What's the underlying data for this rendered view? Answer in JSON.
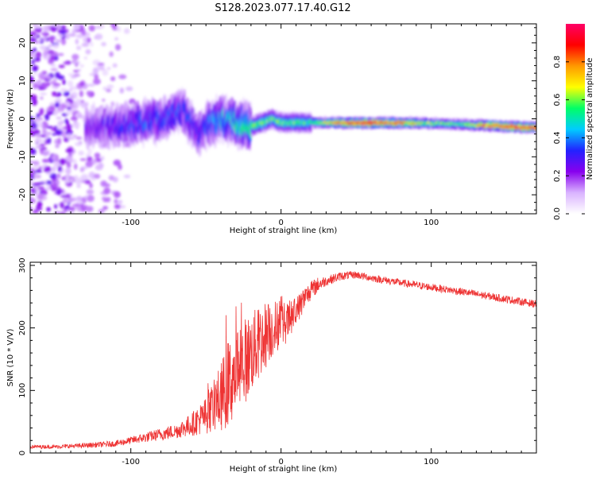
{
  "figure_title": "S128.2023.077.17.40.G12",
  "chart_data": [
    {
      "type": "heatmap",
      "title": "",
      "xlabel": "Height of straight line (km)",
      "ylabel": "Frequency (Hz)",
      "xlim": [
        -167,
        170
      ],
      "ylim": [
        -25,
        25
      ],
      "xticks": [
        -100,
        0,
        100
      ],
      "yticks": [
        -20,
        -10,
        0,
        10,
        20
      ],
      "grid": false,
      "colorbar": {
        "label": "Normalized spectral amplitude",
        "range": [
          0.0,
          1.0
        ],
        "ticks": [
          0.0,
          0.2,
          0.4,
          0.6,
          0.8
        ],
        "colormap": [
          "#ffffff",
          "#d9b3ff",
          "#8800ee",
          "#2222ff",
          "#00ccff",
          "#00ff66",
          "#ffff00",
          "#ff9900",
          "#ff0000",
          "#ff0066"
        ]
      },
      "ridge": {
        "description_x": [
          -125,
          -110,
          -95,
          -80,
          -65,
          -55,
          -48,
          -40,
          -30,
          -20,
          -12,
          -6,
          0,
          10,
          20,
          40,
          60,
          80,
          100,
          120,
          140,
          160,
          170
        ],
        "frequency_hz": [
          -2,
          -2,
          -1,
          0,
          2,
          -4,
          -1,
          0,
          -1,
          -2,
          -1,
          0,
          -1,
          -1,
          -1,
          -1.1,
          -1.1,
          -1.1,
          -1.2,
          -1.5,
          -1.8,
          -2.2,
          -2.3
        ],
        "peak_amplitude": [
          0.25,
          0.3,
          0.35,
          0.35,
          0.35,
          0.3,
          0.4,
          0.45,
          0.5,
          0.55,
          0.6,
          0.55,
          0.55,
          0.55,
          0.55,
          0.85,
          0.9,
          0.8,
          0.6,
          0.55,
          0.85,
          0.9,
          0.9
        ]
      }
    },
    {
      "type": "line",
      "title": "",
      "xlabel": "Height of straight line (km)",
      "ylabel": "SNR (10 * V/V)",
      "xlim": [
        -167,
        170
      ],
      "ylim": [
        0,
        305
      ],
      "xticks": [
        -100,
        0,
        100
      ],
      "yticks": [
        0,
        100,
        200,
        300
      ],
      "grid": false,
      "series": [
        {
          "color": "#ee3333",
          "x": [
            -167,
            -150,
            -130,
            -110,
            -100,
            -90,
            -80,
            -70,
            -60,
            -50,
            -45,
            -40,
            -35,
            -30,
            -25,
            -20,
            -15,
            -10,
            -5,
            0,
            5,
            10,
            15,
            20,
            25,
            30,
            40,
            50,
            60,
            80,
            100,
            120,
            140,
            160,
            170
          ],
          "y": [
            10,
            10,
            12,
            15,
            20,
            25,
            30,
            35,
            45,
            60,
            75,
            90,
            110,
            130,
            145,
            160,
            175,
            190,
            200,
            205,
            210,
            225,
            245,
            260,
            270,
            275,
            283,
            285,
            280,
            272,
            265,
            258,
            250,
            242,
            238
          ],
          "noise": [
            3,
            3,
            4,
            5,
            6,
            8,
            10,
            12,
            18,
            30,
            40,
            55,
            70,
            75,
            70,
            65,
            60,
            55,
            45,
            40,
            30,
            25,
            20,
            15,
            12,
            8,
            7,
            6,
            6,
            6,
            6,
            6,
            6,
            6,
            6
          ]
        }
      ]
    }
  ]
}
